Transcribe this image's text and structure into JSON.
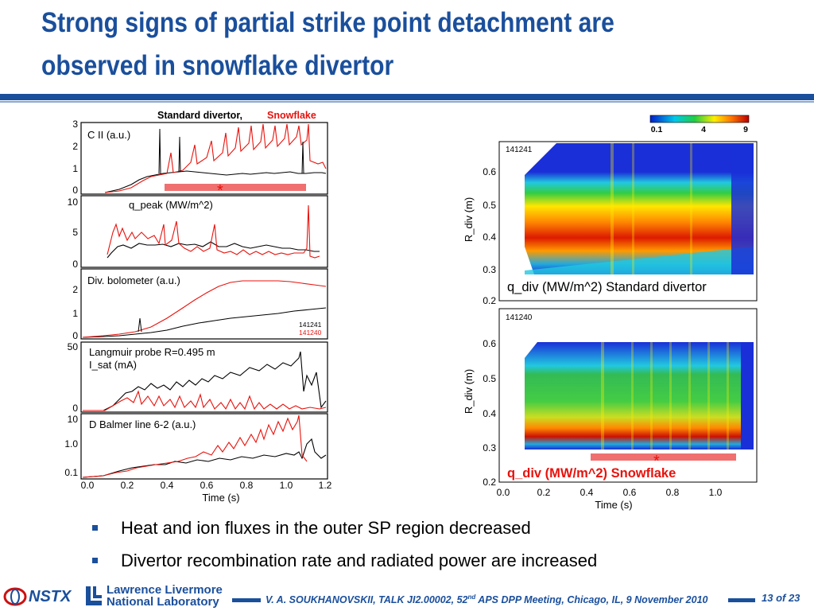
{
  "slide": {
    "title_line1": "Strong signs of partial strike point detachment are",
    "title_line2": "observed in snowflake divertor"
  },
  "left_figure": {
    "header_black": "Standard divertor,",
    "header_red": "Snowflake",
    "shot_black": "141241",
    "shot_red": "141240",
    "xlabel": "Time (s)",
    "xticks": [
      "0.0",
      "0.2",
      "0.4",
      "0.6",
      "0.8",
      "1.0",
      "1.2"
    ],
    "star": "*",
    "panels": [
      {
        "label": "C II (a.u.)",
        "yticks": [
          "3",
          "2",
          "1",
          "0"
        ]
      },
      {
        "label": "q_peak (MW/m^2)",
        "yticks": [
          "10",
          "5",
          "0"
        ]
      },
      {
        "label": "Div. bolometer (a.u.)",
        "yticks": [
          "2",
          "1",
          "0"
        ]
      },
      {
        "label": "Langmuir probe R=0.495 m",
        "label2": "I_sat (mA)",
        "yticks": [
          "50",
          "0"
        ]
      },
      {
        "label": "D Balmer line 6-2 (a.u.)",
        "yticks": [
          "10",
          "1.0",
          "0.1"
        ]
      }
    ]
  },
  "right_figure": {
    "colorbar_ticks": [
      "0.1",
      "4",
      "9"
    ],
    "ylabel": "R_div (m)",
    "xlabel": "Time (s)",
    "xticks": [
      "0.0",
      "0.2",
      "0.4",
      "0.6",
      "0.8",
      "1.0"
    ],
    "yticks": [
      "0.6",
      "0.5",
      "0.4",
      "0.3",
      "0.2"
    ],
    "star": "*",
    "top": {
      "shot": "141241",
      "caption": "q_div (MW/m^2) Standard divertor"
    },
    "bottom": {
      "shot": "141240",
      "caption": "q_div (MW/m^2) Snowflake"
    }
  },
  "bullets": [
    "Heat and ion fluxes in the outer SP region decreased",
    "Divertor recombination rate and radiated power are increased"
  ],
  "footer": {
    "nstx": "NSTX",
    "llnl_line1": "Lawrence Livermore",
    "llnl_line2": "National Laboratory",
    "citation_prefix": "V. A. SOUKHANOVSKII, TALK JI2.00002, 52",
    "citation_sup": "nd",
    "citation_suffix": " APS DPP Meeting, Chicago, IL, 9 November 2010",
    "page": "13 of 23"
  },
  "colors": {
    "accent_blue": "#1a4f9c",
    "standard_series": "#000000",
    "snowflake_series": "#e8120c",
    "snowflake_bar": "#f07070"
  }
}
